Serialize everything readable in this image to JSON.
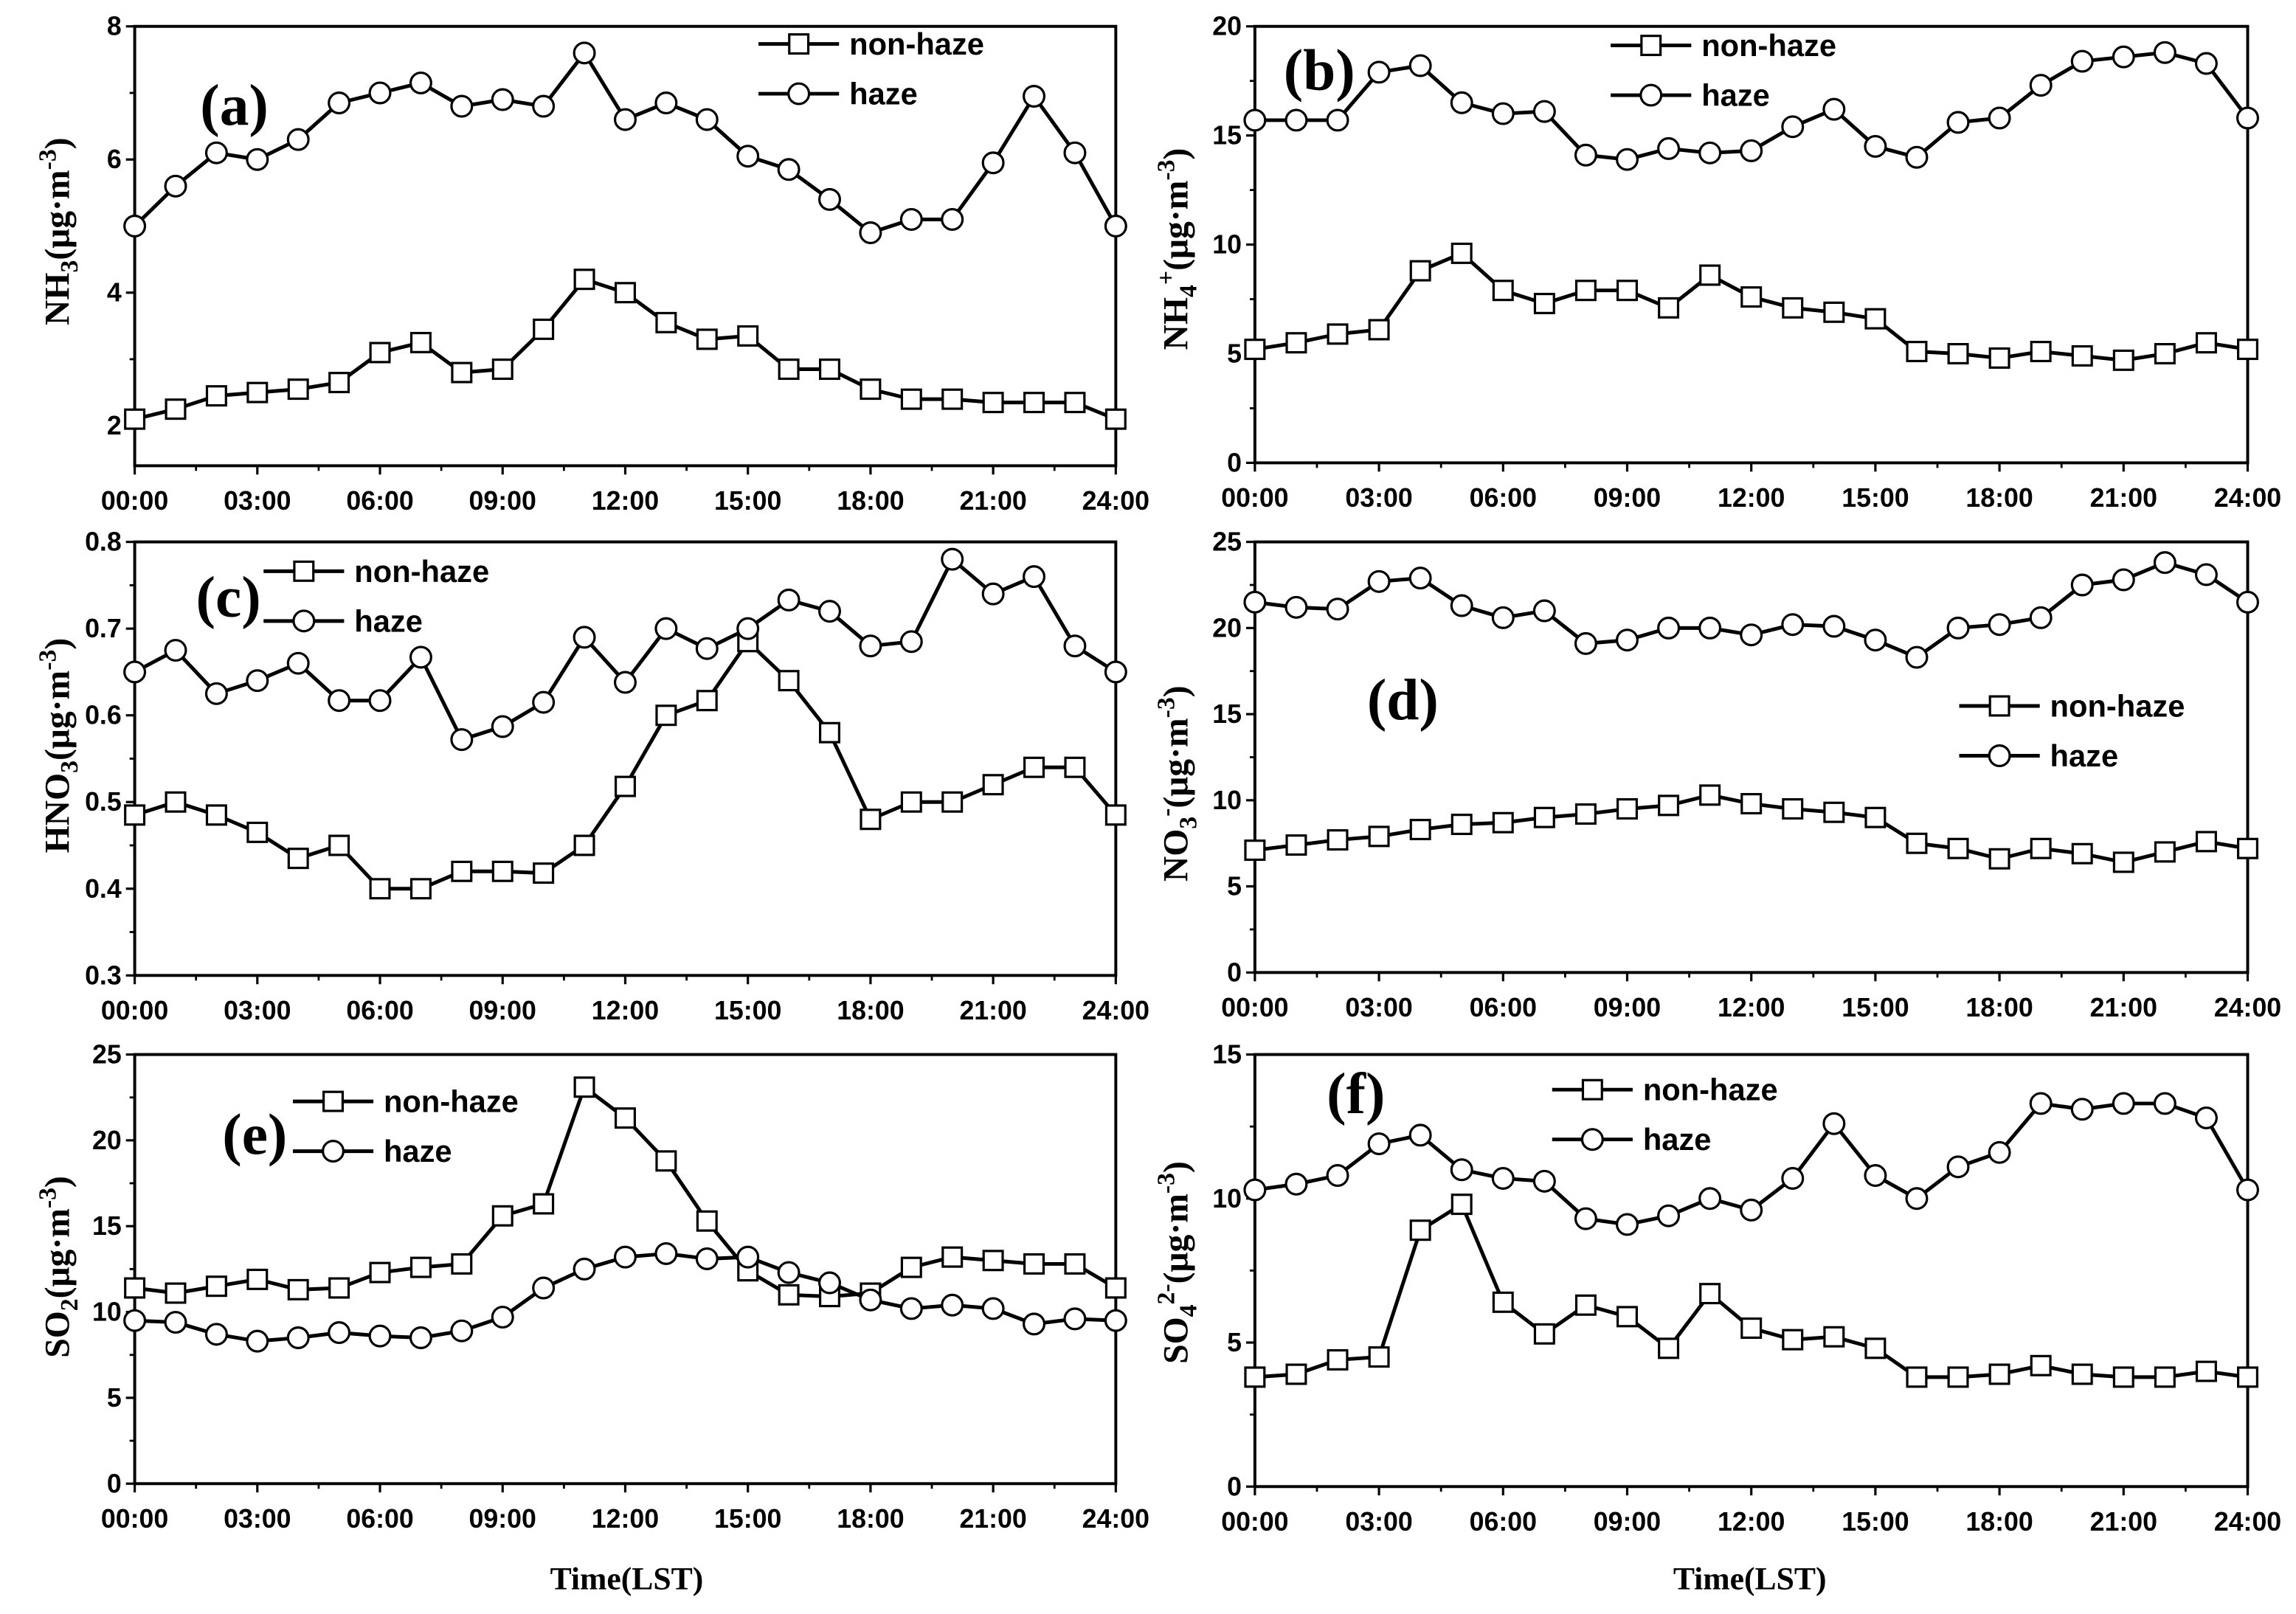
{
  "style": {
    "ink": "#000000",
    "paper": "#ffffff"
  },
  "chart_data": [
    {
      "type": "line",
      "panel_label": "(a)",
      "ylabel": [
        {
          "t": "NH"
        },
        {
          "t": "3",
          "sub": true
        },
        {
          "t": "(μg·m"
        },
        {
          "t": "-3",
          "sup": true
        },
        {
          "t": ")"
        }
      ],
      "xlabel": "",
      "legend": "top-right",
      "xlim": [
        0,
        24
      ],
      "ylim": [
        1.4,
        8
      ],
      "xticks": [
        {
          "v": 0,
          "label": "00:00"
        },
        {
          "v": 3,
          "label": "03:00"
        },
        {
          "v": 6,
          "label": "06:00"
        },
        {
          "v": 9,
          "label": "09:00"
        },
        {
          "v": 12,
          "label": "12:00"
        },
        {
          "v": 15,
          "label": "15:00"
        },
        {
          "v": 18,
          "label": "18:00"
        },
        {
          "v": 21,
          "label": "21:00"
        },
        {
          "v": 24,
          "label": "24:00"
        }
      ],
      "yticks": [
        2,
        4,
        6,
        8
      ],
      "x": [
        0,
        1,
        2,
        3,
        4,
        5,
        6,
        7,
        8,
        9,
        10,
        11,
        12,
        13,
        14,
        15,
        16,
        17,
        18,
        19,
        20,
        21,
        22,
        23,
        24
      ],
      "series": [
        {
          "name": "non-haze",
          "marker": "square",
          "values": [
            2.1,
            2.25,
            2.45,
            2.5,
            2.55,
            2.65,
            3.1,
            3.25,
            2.8,
            2.85,
            3.45,
            4.2,
            4.0,
            3.55,
            3.3,
            3.35,
            2.85,
            2.85,
            2.55,
            2.4,
            2.4,
            2.35,
            2.35,
            2.35,
            2.1
          ]
        },
        {
          "name": "haze",
          "marker": "circle",
          "values": [
            5.0,
            5.6,
            6.1,
            6.0,
            6.3,
            6.85,
            7.0,
            7.15,
            6.8,
            6.9,
            6.8,
            7.6,
            6.6,
            6.85,
            6.6,
            6.05,
            5.85,
            5.4,
            4.9,
            5.1,
            5.1,
            5.95,
            6.95,
            6.1,
            5.0
          ]
        }
      ]
    },
    {
      "type": "line",
      "panel_label": "(b)",
      "ylabel": [
        {
          "t": "NH"
        },
        {
          "t": "4",
          "sub": true
        },
        {
          "t": "+",
          "sup": true
        },
        {
          "t": "(μg·m"
        },
        {
          "t": "-3",
          "sup": true
        },
        {
          "t": ")"
        }
      ],
      "xlabel": "",
      "legend": "top-center",
      "xlim": [
        0,
        24
      ],
      "ylim": [
        0,
        20
      ],
      "xticks": [
        {
          "v": 0,
          "label": "00:00"
        },
        {
          "v": 3,
          "label": "03:00"
        },
        {
          "v": 6,
          "label": "06:00"
        },
        {
          "v": 9,
          "label": "09:00"
        },
        {
          "v": 12,
          "label": "12:00"
        },
        {
          "v": 15,
          "label": "15:00"
        },
        {
          "v": 18,
          "label": "18:00"
        },
        {
          "v": 21,
          "label": "21:00"
        },
        {
          "v": 24,
          "label": "24:00"
        }
      ],
      "yticks": [
        0,
        5,
        10,
        15,
        20
      ],
      "x": [
        0,
        1,
        2,
        3,
        4,
        5,
        6,
        7,
        8,
        9,
        10,
        11,
        12,
        13,
        14,
        15,
        16,
        17,
        18,
        19,
        20,
        21,
        22,
        23,
        24
      ],
      "series": [
        {
          "name": "non-haze",
          "marker": "square",
          "values": [
            5.2,
            5.5,
            5.9,
            6.1,
            8.8,
            9.6,
            7.9,
            7.3,
            7.9,
            7.9,
            7.1,
            8.6,
            7.6,
            7.1,
            6.9,
            6.6,
            5.1,
            5.0,
            4.8,
            5.1,
            4.9,
            4.7,
            5.0,
            5.5,
            5.2
          ]
        },
        {
          "name": "haze",
          "marker": "circle",
          "values": [
            15.7,
            15.7,
            15.7,
            17.9,
            18.2,
            16.5,
            16.0,
            16.1,
            14.1,
            13.9,
            14.4,
            14.2,
            14.3,
            15.4,
            16.2,
            14.5,
            14.0,
            15.6,
            15.8,
            17.3,
            18.4,
            18.6,
            18.8,
            18.3,
            15.8
          ]
        }
      ]
    },
    {
      "type": "line",
      "panel_label": "(c)",
      "ylabel": [
        {
          "t": "HNO"
        },
        {
          "t": "3",
          "sub": true
        },
        {
          "t": "(μg·m"
        },
        {
          "t": "-3",
          "sup": true
        },
        {
          "t": ")"
        }
      ],
      "xlabel": "",
      "legend": "top-left",
      "xlim": [
        0,
        24
      ],
      "ylim": [
        0.3,
        0.8
      ],
      "xticks": [
        {
          "v": 0,
          "label": "00:00"
        },
        {
          "v": 3,
          "label": "03:00"
        },
        {
          "v": 6,
          "label": "06:00"
        },
        {
          "v": 9,
          "label": "09:00"
        },
        {
          "v": 12,
          "label": "12:00"
        },
        {
          "v": 15,
          "label": "15:00"
        },
        {
          "v": 18,
          "label": "18:00"
        },
        {
          "v": 21,
          "label": "21:00"
        },
        {
          "v": 24,
          "label": "24:00"
        }
      ],
      "yticks": [
        0.3,
        0.4,
        0.5,
        0.6,
        0.7,
        0.8
      ],
      "x": [
        0,
        1,
        2,
        3,
        4,
        5,
        6,
        7,
        8,
        9,
        10,
        11,
        12,
        13,
        14,
        15,
        16,
        17,
        18,
        19,
        20,
        21,
        22,
        23,
        24
      ],
      "series": [
        {
          "name": "non-haze",
          "marker": "square",
          "values": [
            0.485,
            0.5,
            0.485,
            0.465,
            0.435,
            0.45,
            0.4,
            0.4,
            0.42,
            0.42,
            0.418,
            0.45,
            0.518,
            0.6,
            0.617,
            0.685,
            0.64,
            0.58,
            0.48,
            0.5,
            0.5,
            0.52,
            0.54,
            0.54,
            0.485
          ]
        },
        {
          "name": "haze",
          "marker": "circle",
          "values": [
            0.65,
            0.675,
            0.625,
            0.64,
            0.66,
            0.617,
            0.617,
            0.667,
            0.572,
            0.587,
            0.615,
            0.69,
            0.638,
            0.7,
            0.677,
            0.7,
            0.733,
            0.72,
            0.68,
            0.685,
            0.78,
            0.74,
            0.76,
            0.68,
            0.65
          ]
        }
      ]
    },
    {
      "type": "line",
      "panel_label": "(d)",
      "ylabel": [
        {
          "t": "NO"
        },
        {
          "t": "3",
          "sub": true
        },
        {
          "t": "-",
          "sup": true
        },
        {
          "t": "(μg·m"
        },
        {
          "t": "-3",
          "sup": true
        },
        {
          "t": ")"
        }
      ],
      "xlabel": "",
      "legend": "center-right",
      "xlim": [
        0,
        24
      ],
      "ylim": [
        0,
        25
      ],
      "xticks": [
        {
          "v": 0,
          "label": "00:00"
        },
        {
          "v": 3,
          "label": "03:00"
        },
        {
          "v": 6,
          "label": "06:00"
        },
        {
          "v": 9,
          "label": "09:00"
        },
        {
          "v": 12,
          "label": "12:00"
        },
        {
          "v": 15,
          "label": "15:00"
        },
        {
          "v": 18,
          "label": "18:00"
        },
        {
          "v": 21,
          "label": "21:00"
        },
        {
          "v": 24,
          "label": "24:00"
        }
      ],
      "yticks": [
        0,
        5,
        10,
        15,
        20,
        25
      ],
      "x": [
        0,
        1,
        2,
        3,
        4,
        5,
        6,
        7,
        8,
        9,
        10,
        11,
        12,
        13,
        14,
        15,
        16,
        17,
        18,
        19,
        20,
        21,
        22,
        23,
        24
      ],
      "series": [
        {
          "name": "non-haze",
          "marker": "square",
          "values": [
            7.1,
            7.4,
            7.7,
            7.9,
            8.3,
            8.6,
            8.7,
            9.0,
            9.2,
            9.5,
            9.7,
            10.3,
            9.8,
            9.5,
            9.3,
            9.0,
            7.5,
            7.2,
            6.6,
            7.2,
            6.9,
            6.4,
            7.0,
            7.6,
            7.2
          ]
        },
        {
          "name": "haze",
          "marker": "circle",
          "values": [
            21.5,
            21.2,
            21.1,
            22.7,
            22.9,
            21.3,
            20.6,
            21.0,
            19.1,
            19.3,
            20.0,
            20.0,
            19.6,
            20.2,
            20.1,
            19.3,
            18.3,
            20.0,
            20.2,
            20.6,
            22.5,
            22.8,
            23.8,
            23.1,
            21.5
          ]
        }
      ]
    },
    {
      "type": "line",
      "panel_label": "(e)",
      "ylabel": [
        {
          "t": "SO"
        },
        {
          "t": "2",
          "sub": true
        },
        {
          "t": "(μg·m"
        },
        {
          "t": "-3",
          "sup": true
        },
        {
          "t": ")"
        }
      ],
      "xlabel": "Time(LST)",
      "legend": "top-left",
      "xlim": [
        0,
        24
      ],
      "ylim": [
        0,
        25
      ],
      "xticks": [
        {
          "v": 0,
          "label": "00:00"
        },
        {
          "v": 3,
          "label": "03:00"
        },
        {
          "v": 6,
          "label": "06:00"
        },
        {
          "v": 9,
          "label": "09:00"
        },
        {
          "v": 12,
          "label": "12:00"
        },
        {
          "v": 15,
          "label": "15:00"
        },
        {
          "v": 18,
          "label": "18:00"
        },
        {
          "v": 21,
          "label": "21:00"
        },
        {
          "v": 24,
          "label": "24:00"
        }
      ],
      "yticks": [
        0,
        5,
        10,
        15,
        20,
        25
      ],
      "x": [
        0,
        1,
        2,
        3,
        4,
        5,
        6,
        7,
        8,
        9,
        10,
        11,
        12,
        13,
        14,
        15,
        16,
        17,
        18,
        19,
        20,
        21,
        22,
        23,
        24
      ],
      "series": [
        {
          "name": "non-haze",
          "marker": "square",
          "values": [
            11.4,
            11.1,
            11.5,
            11.9,
            11.3,
            11.4,
            12.3,
            12.6,
            12.8,
            15.6,
            16.3,
            23.1,
            21.3,
            18.8,
            15.3,
            12.4,
            11.0,
            10.9,
            11.1,
            12.6,
            13.2,
            13.0,
            12.8,
            12.8,
            11.4
          ]
        },
        {
          "name": "haze",
          "marker": "circle",
          "values": [
            9.5,
            9.4,
            8.7,
            8.3,
            8.5,
            8.8,
            8.6,
            8.5,
            8.9,
            9.7,
            11.4,
            12.5,
            13.2,
            13.4,
            13.1,
            13.2,
            12.3,
            11.7,
            10.7,
            10.2,
            10.4,
            10.2,
            9.3,
            9.6,
            9.5
          ]
        }
      ]
    },
    {
      "type": "line",
      "panel_label": "(f)",
      "ylabel": [
        {
          "t": "SO"
        },
        {
          "t": "4",
          "sub": true
        },
        {
          "t": "2-",
          "sup": true
        },
        {
          "t": "(μg·m"
        },
        {
          "t": "-3",
          "sup": true
        },
        {
          "t": ")"
        }
      ],
      "xlabel": "Time(LST)",
      "legend": "top-center",
      "xlim": [
        0,
        24
      ],
      "ylim": [
        0,
        15
      ],
      "xticks": [
        {
          "v": 0,
          "label": "00:00"
        },
        {
          "v": 3,
          "label": "03:00"
        },
        {
          "v": 6,
          "label": "06:00"
        },
        {
          "v": 9,
          "label": "09:00"
        },
        {
          "v": 12,
          "label": "12:00"
        },
        {
          "v": 15,
          "label": "15:00"
        },
        {
          "v": 18,
          "label": "18:00"
        },
        {
          "v": 21,
          "label": "21:00"
        },
        {
          "v": 24,
          "label": "24:00"
        }
      ],
      "yticks": [
        0,
        5,
        10,
        15
      ],
      "x": [
        0,
        1,
        2,
        3,
        4,
        5,
        6,
        7,
        8,
        9,
        10,
        11,
        12,
        13,
        14,
        15,
        16,
        17,
        18,
        19,
        20,
        21,
        22,
        23,
        24
      ],
      "series": [
        {
          "name": "non-haze",
          "marker": "square",
          "values": [
            3.8,
            3.9,
            4.4,
            4.5,
            8.9,
            9.8,
            6.4,
            5.3,
            6.3,
            5.9,
            4.8,
            6.7,
            5.5,
            5.1,
            5.2,
            4.8,
            3.8,
            3.8,
            3.9,
            4.2,
            3.9,
            3.8,
            3.8,
            4.0,
            3.8
          ]
        },
        {
          "name": "haze",
          "marker": "circle",
          "values": [
            10.3,
            10.5,
            10.8,
            11.9,
            12.2,
            11.0,
            10.7,
            10.6,
            9.3,
            9.1,
            9.4,
            10.0,
            9.6,
            10.7,
            12.6,
            10.8,
            10.0,
            11.1,
            11.6,
            13.3,
            13.1,
            13.3,
            13.3,
            12.8,
            10.3
          ]
        }
      ]
    }
  ]
}
